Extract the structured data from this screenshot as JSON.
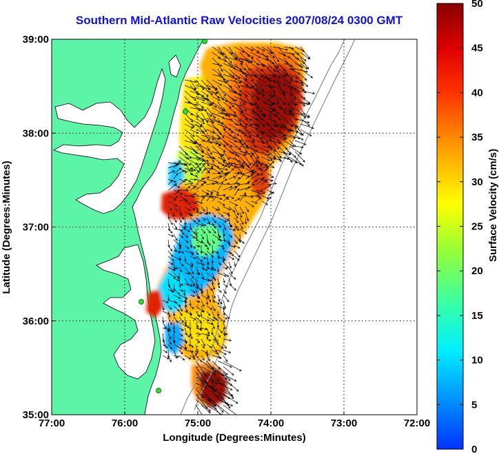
{
  "title": "Southern Mid-Atlantic Raw Velocities 2007/08/24 0300 GMT",
  "map": {
    "xlabel": "Longitude (Degrees:Minutes)",
    "ylabel": "Latitude (Degrees:Minutes)",
    "lon_range": [
      -77,
      -72
    ],
    "lat_range": [
      35,
      39
    ],
    "x_ticks": [
      {
        "value": -77,
        "label": "77:00"
      },
      {
        "value": -76,
        "label": "76:00"
      },
      {
        "value": -75,
        "label": "75:00"
      },
      {
        "value": -74,
        "label": "74:00"
      },
      {
        "value": -73,
        "label": "73:00"
      },
      {
        "value": -72,
        "label": "72:00"
      }
    ],
    "y_ticks": [
      {
        "value": 39,
        "label": "39:00"
      },
      {
        "value": 38,
        "label": "38:00"
      },
      {
        "value": 37,
        "label": "37:00"
      },
      {
        "value": 36,
        "label": "36:00"
      },
      {
        "value": 35,
        "label": "35:00"
      }
    ],
    "grid": "dotted",
    "land_color": "#5cf5a8",
    "arrow_color": "#000000",
    "station_color": "#33dd33"
  },
  "colorbar": {
    "label": "Surface Velocity (cm/s)",
    "range": [
      0,
      50
    ],
    "ticks": [
      {
        "value": 0,
        "label": "0"
      },
      {
        "value": 5,
        "label": "5"
      },
      {
        "value": 10,
        "label": "10"
      },
      {
        "value": 15,
        "label": "15"
      },
      {
        "value": 20,
        "label": "20"
      },
      {
        "value": 25,
        "label": "25"
      },
      {
        "value": 30,
        "label": "30"
      },
      {
        "value": 35,
        "label": "35"
      },
      {
        "value": 40,
        "label": "40"
      },
      {
        "value": 45,
        "label": "45"
      },
      {
        "value": 50,
        "label": "50"
      }
    ],
    "colormap": [
      "#0033ff",
      "#00ccff",
      "#33ffaa",
      "#ccff33",
      "#ffcc00",
      "#ff6600",
      "#ff0000",
      "#990000"
    ]
  }
}
